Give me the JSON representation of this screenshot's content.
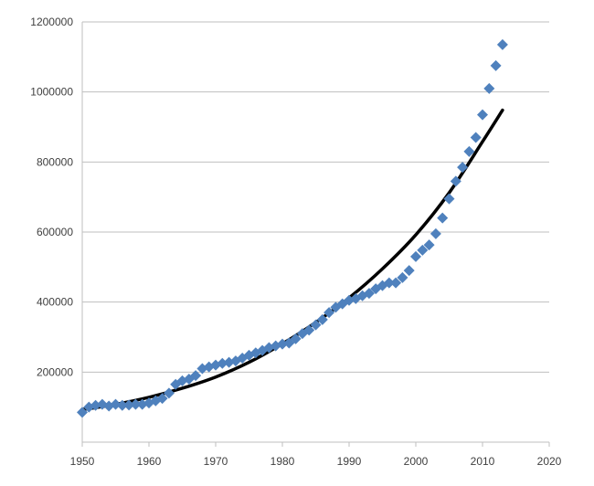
{
  "chart_data": {
    "type": "scatter",
    "title": "",
    "xlabel": "",
    "ylabel": "",
    "xlim": [
      1950,
      2020
    ],
    "ylim": [
      0,
      1200000
    ],
    "grid": true,
    "legend": "none",
    "colors": {
      "points": "#4F81BD",
      "trend": "#000000",
      "grid": "#BFBFBF"
    },
    "x_ticks": [
      "1950",
      "1960",
      "1970",
      "1980",
      "1990",
      "2000",
      "2010",
      "2020"
    ],
    "y_ticks": [
      "200000",
      "400000",
      "600000",
      "800000",
      "1000000",
      "1200000"
    ],
    "series": [
      {
        "kind": "points",
        "x": [
          1950,
          1951,
          1952,
          1953,
          1954,
          1955,
          1956,
          1957,
          1958,
          1959,
          1960,
          1961,
          1962,
          1963,
          1964,
          1965,
          1966,
          1967,
          1968,
          1969,
          1970,
          1971,
          1972,
          1973,
          1974,
          1975,
          1976,
          1977,
          1978,
          1979,
          1980,
          1981,
          1982,
          1983,
          1984,
          1985,
          1986,
          1987,
          1988,
          1989,
          1990,
          1991,
          1992,
          1993,
          1994,
          1995,
          1996,
          1997,
          1998,
          1999,
          2000,
          2001,
          2002,
          2003,
          2004,
          2005,
          2006,
          2007,
          2008,
          2009,
          2010,
          2011,
          2012,
          2013
        ],
        "y": [
          85000,
          100000,
          105000,
          108000,
          103000,
          108000,
          105000,
          106000,
          108000,
          108000,
          112000,
          118000,
          125000,
          140000,
          165000,
          175000,
          180000,
          190000,
          210000,
          215000,
          220000,
          225000,
          228000,
          232000,
          240000,
          248000,
          255000,
          262000,
          270000,
          275000,
          280000,
          283000,
          295000,
          310000,
          320000,
          335000,
          350000,
          370000,
          385000,
          395000,
          405000,
          410000,
          418000,
          425000,
          438000,
          447000,
          455000,
          455000,
          470000,
          490000,
          530000,
          548000,
          563000,
          595000,
          640000,
          695000,
          745000,
          785000,
          830000,
          870000,
          935000,
          1010000,
          1075000,
          1135000
        ]
      },
      {
        "kind": "trendline",
        "fit": "exponential",
        "x": [
          1950,
          1955,
          1960,
          1965,
          1970,
          1975,
          1980,
          1985,
          1990,
          1995,
          2000,
          2005,
          2010,
          2013
        ],
        "y": [
          93000,
          108000,
          128000,
          154000,
          186000,
          228000,
          281000,
          342000,
          412000,
          495000,
          592000,
          712000,
          858000,
          948000
        ]
      }
    ]
  }
}
